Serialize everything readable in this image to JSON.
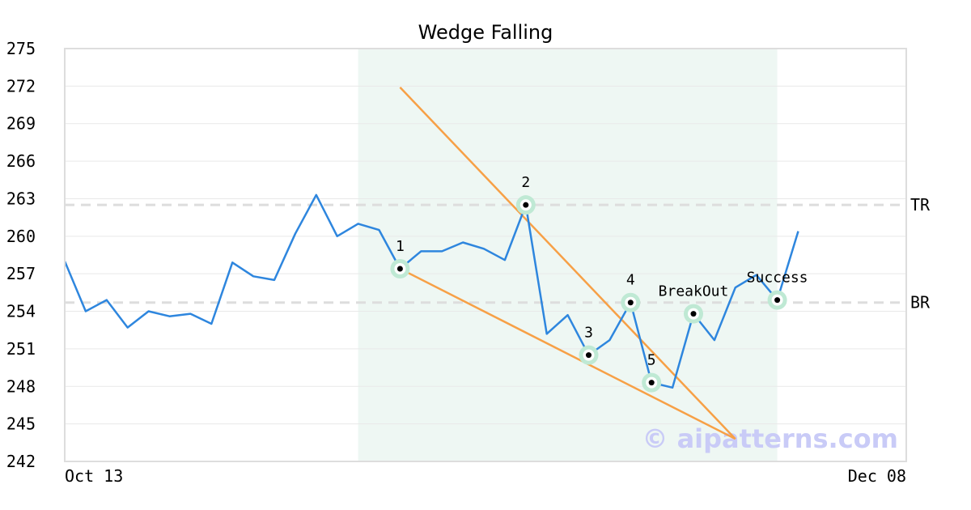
{
  "chart_data": {
    "type": "line",
    "title": "Wedge Falling",
    "xlabel": "",
    "ylabel": "",
    "ylim": [
      242,
      275
    ],
    "yticks": [
      242,
      245,
      248,
      251,
      254,
      257,
      260,
      263,
      266,
      269,
      272,
      275
    ],
    "xtick_labels": [
      {
        "index": 0,
        "label": "Oct 13"
      },
      {
        "index": 40,
        "label": "Dec 08"
      }
    ],
    "grid": "horizontal",
    "series": [
      {
        "color": "#2e86de",
        "values": [
          258.0,
          254.0,
          254.9,
          252.7,
          254.0,
          253.6,
          253.8,
          253.0,
          257.9,
          256.8,
          256.5,
          260.2,
          263.3,
          260.0,
          261.0,
          260.5,
          257.4,
          258.8,
          258.8,
          259.5,
          259.0,
          258.1,
          262.5,
          252.2,
          253.7,
          250.5,
          251.7,
          254.7,
          248.3,
          247.9,
          253.8,
          251.7,
          255.9,
          256.9,
          254.9,
          260.4
        ]
      }
    ],
    "highlight_region": {
      "start_index": 14,
      "end_index": 34,
      "color": "#eef7f3"
    },
    "reference_lines": [
      {
        "label": "TR",
        "value": 262.5
      },
      {
        "label": "BR",
        "value": 254.7
      }
    ],
    "trend_lines": [
      {
        "color": "#f7a046",
        "from": {
          "index": 16,
          "value": 271.9
        },
        "to": {
          "index": 32,
          "value": 243.8
        }
      },
      {
        "color": "#f7a046",
        "from": {
          "index": 16,
          "value": 257.4
        },
        "to": {
          "index": 32,
          "value": 243.8
        }
      }
    ],
    "marked_points": [
      {
        "index": 16,
        "value": 257.4,
        "label": "1",
        "label_pos": "above"
      },
      {
        "index": 22,
        "value": 262.5,
        "label": "2",
        "label_pos": "above"
      },
      {
        "index": 25,
        "value": 250.5,
        "label": "3",
        "label_pos": "above"
      },
      {
        "index": 27,
        "value": 254.7,
        "label": "4",
        "label_pos": "above"
      },
      {
        "index": 28,
        "value": 248.3,
        "label": "5",
        "label_pos": "above"
      },
      {
        "index": 30,
        "value": 253.8,
        "label": "BreakOut",
        "label_pos": "above"
      },
      {
        "index": 34,
        "value": 254.9,
        "label": "Success",
        "label_pos": "above"
      }
    ],
    "watermark": "© aipatterns.com"
  }
}
